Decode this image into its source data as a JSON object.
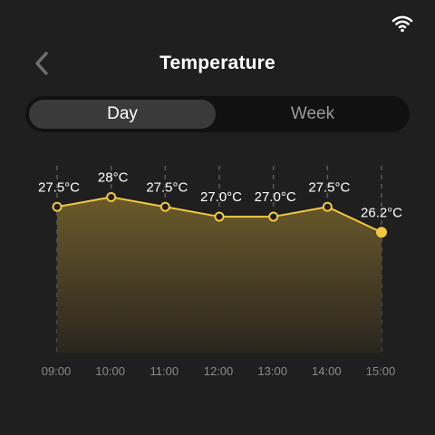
{
  "header": {
    "title": "Temperature",
    "back_icon": "chevron-left-icon"
  },
  "status": {
    "wifi_icon": "wifi-icon"
  },
  "tabs": [
    {
      "label": "Day",
      "active": true
    },
    {
      "label": "Week",
      "active": false
    }
  ],
  "chart_data": {
    "type": "area",
    "title": "",
    "xlabel": "",
    "ylabel": "",
    "categories": [
      "09:00",
      "10:00",
      "11:00",
      "12:00",
      "13:00",
      "14:00",
      "15:00"
    ],
    "values": [
      27.5,
      28,
      27.5,
      27.0,
      27.0,
      27.5,
      26.2
    ],
    "data_labels": [
      "27.5°C",
      "28°C",
      "27.5°C",
      "27.0°C",
      "27.0°C",
      "27.5°C",
      "26.2°C"
    ],
    "highlight_index": 6,
    "line_color": "#f2c744",
    "fill_color_top": "#6b5a2a",
    "fill_color_bottom": "#2a2620",
    "grid": true,
    "ylim": [
      20,
      29.6
    ]
  }
}
